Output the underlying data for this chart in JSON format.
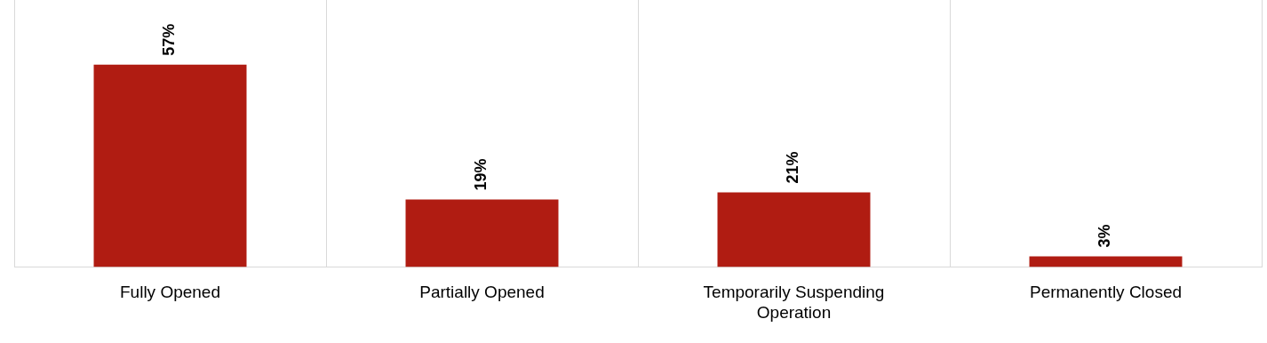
{
  "chart_data": {
    "type": "bar",
    "categories": [
      "Fully Opened",
      "Partially Opened",
      "Temporarily Suspending Operation",
      "Permanently Closed"
    ],
    "values": [
      57,
      19,
      21,
      3
    ],
    "value_labels": [
      "57%",
      "19%",
      "21%",
      "3%"
    ],
    "color": "#b01c12",
    "grid": "x"
  }
}
